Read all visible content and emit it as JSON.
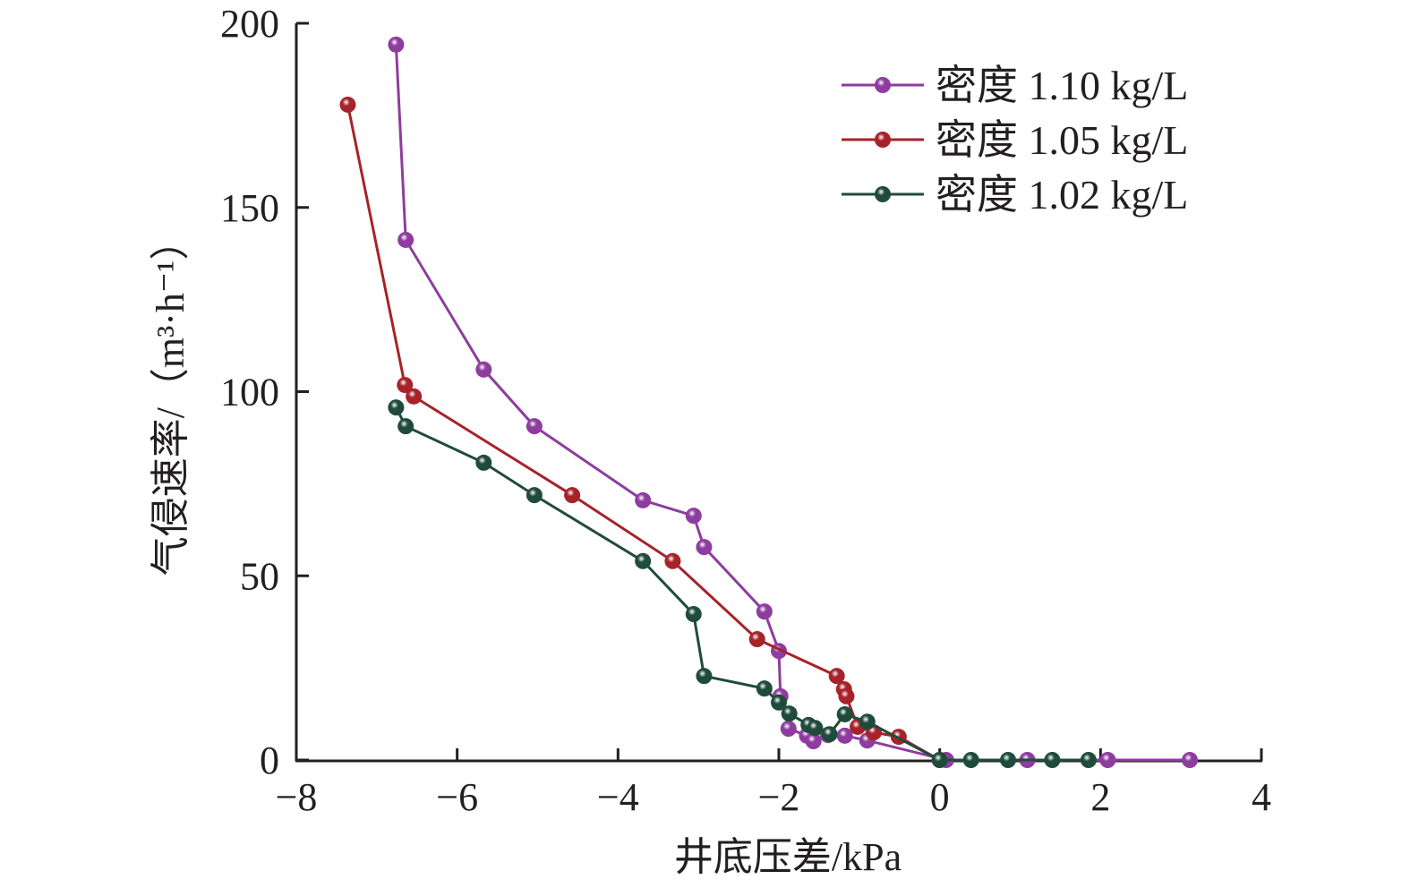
{
  "chart_data": {
    "type": "line",
    "title": "",
    "xlabel": "井底压差/kPa",
    "ylabel": "气侵速率/（m³·h⁻¹）",
    "xlim": [
      -8,
      4
    ],
    "ylim": [
      0,
      200
    ],
    "xticks": [
      "−8",
      "−6",
      "−4",
      "−2",
      "0",
      "2",
      "4"
    ],
    "xtick_values": [
      -8,
      -6,
      -4,
      -2,
      0,
      2,
      4
    ],
    "yticks": [
      "0",
      "50",
      "100",
      "150",
      "200"
    ],
    "ytick_values": [
      0,
      50,
      100,
      150,
      200
    ],
    "grid": false,
    "legend_position": "top-right",
    "series": [
      {
        "name": "密度 1.10 kg/L",
        "color": "#8e3c9f",
        "points": [
          [
            -6.76,
            194.2
          ],
          [
            -6.64,
            141.2
          ],
          [
            -5.67,
            106
          ],
          [
            -5.04,
            90.6
          ],
          [
            -3.69,
            70.5
          ],
          [
            -3.06,
            66.3
          ],
          [
            -2.93,
            57.8
          ],
          [
            -2.18,
            40.3
          ],
          [
            -2.0,
            29.6
          ],
          [
            -1.98,
            17.3
          ],
          [
            -1.88,
            8.5
          ],
          [
            -1.65,
            6.6
          ],
          [
            -1.57,
            5.1
          ],
          [
            -1.39,
            6.8
          ],
          [
            -1.18,
            6.6
          ],
          [
            -0.9,
            5.3
          ],
          [
            0.08,
            0
          ],
          [
            1.09,
            0
          ],
          [
            2.09,
            0
          ],
          [
            3.11,
            0
          ]
        ]
      },
      {
        "name": "密度 1.05 kg/L",
        "color": "#a6232a",
        "points": [
          [
            -7.36,
            177.9
          ],
          [
            -6.65,
            101.8
          ],
          [
            -6.54,
            98.7
          ],
          [
            -4.57,
            71.9
          ],
          [
            -3.32,
            54
          ],
          [
            -2.27,
            32.8
          ],
          [
            -1.28,
            22.8
          ],
          [
            -1.19,
            19.2
          ],
          [
            -1.16,
            17.3
          ],
          [
            -1.02,
            9
          ],
          [
            -0.82,
            7.5
          ],
          [
            -0.51,
            6.3
          ],
          [
            0,
            0
          ]
        ]
      },
      {
        "name": "密度 1.02 kg/L",
        "color": "#1f4b3d",
        "points": [
          [
            -6.76,
            95.7
          ],
          [
            -6.64,
            90.6
          ],
          [
            -5.67,
            80.7
          ],
          [
            -5.04,
            71.9
          ],
          [
            -3.69,
            54
          ],
          [
            -3.06,
            39.6
          ],
          [
            -2.93,
            22.8
          ],
          [
            -2.18,
            19.4
          ],
          [
            -2.0,
            15.6
          ],
          [
            -1.87,
            12.6
          ],
          [
            -1.63,
            9.5
          ],
          [
            -1.55,
            8.7
          ],
          [
            -1.37,
            7
          ],
          [
            -1.18,
            12.4
          ],
          [
            -0.9,
            10.4
          ],
          [
            0,
            0
          ],
          [
            0.39,
            0
          ],
          [
            0.85,
            0
          ],
          [
            1.4,
            0
          ],
          [
            1.85,
            0
          ]
        ]
      }
    ]
  }
}
